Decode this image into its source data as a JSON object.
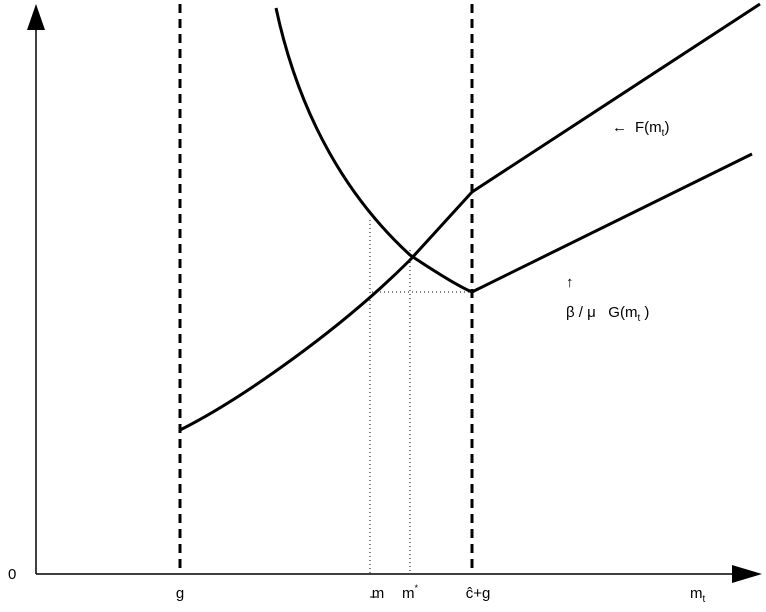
{
  "axes": {
    "origin_label": "0",
    "x_label_main": "m",
    "x_label_sub": "t"
  },
  "ticks": {
    "g": "g",
    "m_lower_base": "m",
    "m_star_base": "m",
    "m_star_sup": "*",
    "c_hat_plus_g": "ĉ+g"
  },
  "labels": {
    "F": {
      "arrow": "←",
      "prefix": "F(m",
      "sub": "t",
      "suffix": ")"
    },
    "G": {
      "arrow": "↑",
      "prefix": "β / μ   G(m",
      "sub": "t",
      "suffix": " )"
    }
  }
}
